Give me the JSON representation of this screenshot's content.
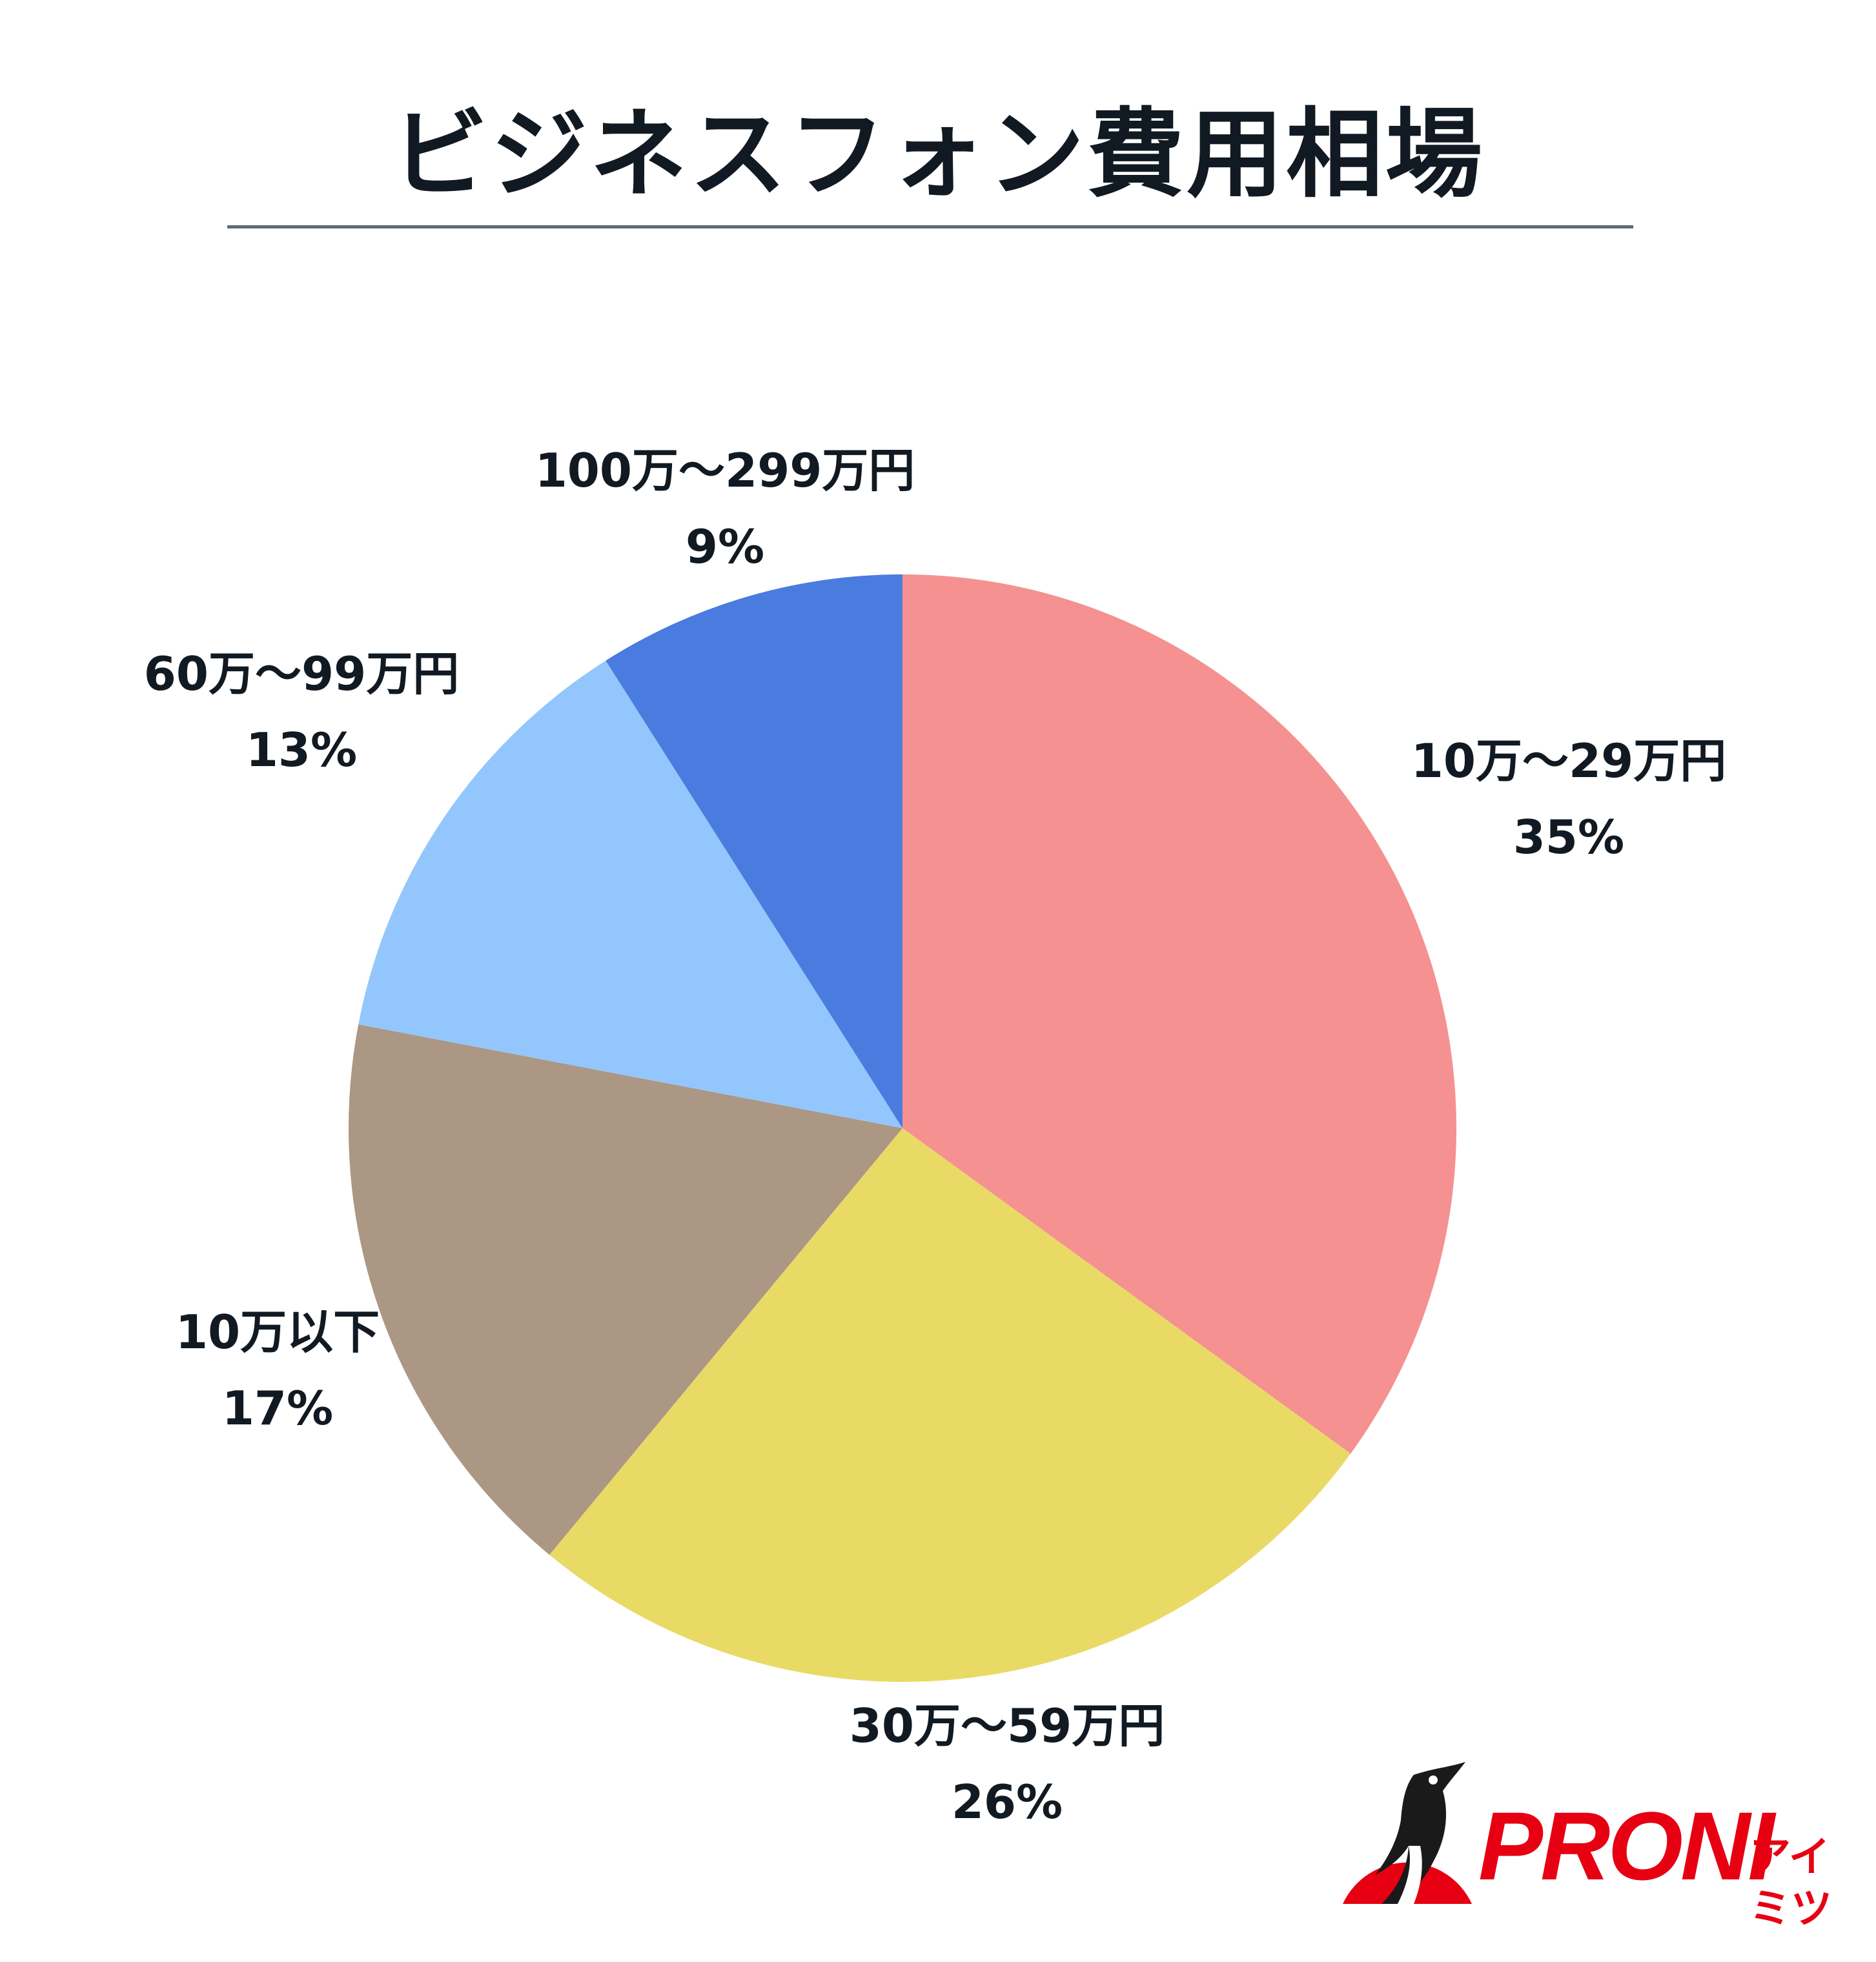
{
  "chart_data": {
    "type": "pie",
    "title": "ビジネスフォン費用相場",
    "slices": [
      {
        "label": "10万～29万円",
        "value": 35,
        "display": "35%",
        "color": "#f59190"
      },
      {
        "label": "30万～59万円",
        "value": 26,
        "display": "26%",
        "color": "#e9da66"
      },
      {
        "label": "10万以下",
        "value": 17,
        "display": "17%",
        "color": "#ab9783"
      },
      {
        "label": "60万～99万円",
        "value": 13,
        "display": "13%",
        "color": "#93c6fd"
      },
      {
        "label": "100万～299万円",
        "value": 9,
        "display": "9%",
        "color": "#4a7bdf"
      }
    ],
    "start": "12 o'clock",
    "direction": "clockwise",
    "legend": "none"
  },
  "brand": {
    "logo_text": "PRONI",
    "logo_sub": "アイミツ",
    "color": "#e60012"
  }
}
